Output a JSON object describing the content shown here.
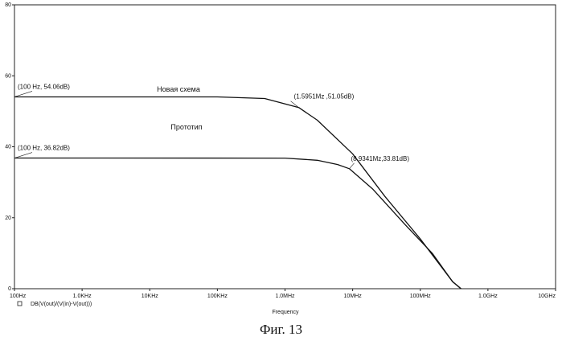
{
  "chart_data": {
    "type": "line",
    "xscale": "log",
    "xlim": [
      "100Hz",
      "10GHz"
    ],
    "ylim": [
      0,
      80
    ],
    "x_tick_labels": [
      "100Hz",
      "1.0KHz",
      "10KHz",
      "100KHz",
      "1.0MHz",
      "10MHz",
      "100MHz",
      "1.0GHz",
      "10GHz"
    ],
    "y_tick_labels": [
      "0",
      "20",
      "40",
      "60",
      "80"
    ],
    "xlabel": "Frequency",
    "trace_expression": "DB(V(out)/(V(in)-V(out)))",
    "series": [
      {
        "name": "Новая схема",
        "points": [
          {
            "x_hz": 100,
            "y_db": 54.06
          },
          {
            "x_hz": 100000,
            "y_db": 54.06
          },
          {
            "x_hz": 500000,
            "y_db": 53.6
          },
          {
            "x_hz": 1595100,
            "y_db": 51.05
          },
          {
            "x_hz": 3000000,
            "y_db": 47.5
          },
          {
            "x_hz": 10000000,
            "y_db": 38
          },
          {
            "x_hz": 30000000,
            "y_db": 26
          },
          {
            "x_hz": 100000000,
            "y_db": 14
          },
          {
            "x_hz": 300000000,
            "y_db": 2
          },
          {
            "x_hz": 400000000,
            "y_db": 0
          }
        ]
      },
      {
        "name": "Прототип",
        "points": [
          {
            "x_hz": 100,
            "y_db": 36.82
          },
          {
            "x_hz": 1000000,
            "y_db": 36.8
          },
          {
            "x_hz": 3000000,
            "y_db": 36.2
          },
          {
            "x_hz": 6000000,
            "y_db": 35
          },
          {
            "x_hz": 8934100,
            "y_db": 33.81
          },
          {
            "x_hz": 20000000,
            "y_db": 28
          },
          {
            "x_hz": 60000000,
            "y_db": 18
          },
          {
            "x_hz": 150000000,
            "y_db": 10
          },
          {
            "x_hz": 300000000,
            "y_db": 2
          },
          {
            "x_hz": 400000000,
            "y_db": 0
          }
        ]
      }
    ],
    "annotations": [
      {
        "text": "(100 Hz, 54.06dB)",
        "x_hz": 100,
        "y_db": 54.06
      },
      {
        "text": "(1.5951Mz ,51.05dB)",
        "x_hz": 1595100,
        "y_db": 51.05
      },
      {
        "text": "(100 Hz, 36.82dB)",
        "x_hz": 100,
        "y_db": 36.82
      },
      {
        "text": "(8.9341Mz,33.81dB)",
        "x_hz": 8934100,
        "y_db": 33.81
      }
    ],
    "grid": false,
    "legend": "none"
  },
  "caption": "Фиг. 13"
}
